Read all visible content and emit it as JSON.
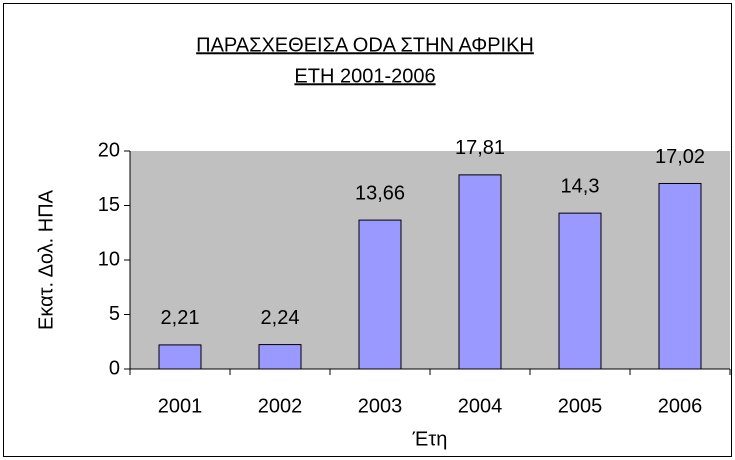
{
  "chart_data": {
    "type": "bar",
    "title": [
      "ΠΑΡΑΣΧΕΘΕΙΣΑ ODA ΣΤΗΝ ΑΦΡΙΚΗ",
      "ΕΤΗ 2001-2006"
    ],
    "x_label": "Έτη",
    "y_label": "Εκατ. Δολ. ΗΠΑ",
    "categories": [
      "2001",
      "2002",
      "2003",
      "2004",
      "2005",
      "2006"
    ],
    "values": [
      2.21,
      2.24,
      13.66,
      17.81,
      14.3,
      17.02
    ],
    "value_labels": [
      "2,21",
      "2,24",
      "13,66",
      "17,81",
      "14,3",
      "17,02"
    ],
    "color": "#9999ff",
    "plot_background": "#c0c0c0",
    "ylim": [
      0,
      20
    ],
    "yticks": [
      0,
      5,
      10,
      15,
      20
    ]
  }
}
